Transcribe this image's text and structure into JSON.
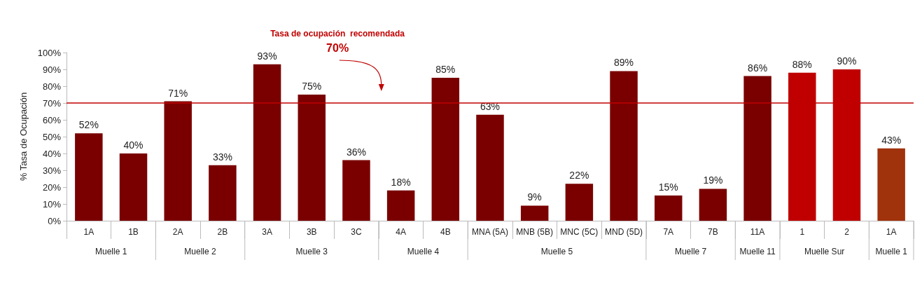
{
  "chart_data": {
    "type": "bar",
    "ylabel": "% Tasa de Ocupación",
    "categories": [
      "1A",
      "1B",
      "2A",
      "2B",
      "3A",
      "3B",
      "3C",
      "4A",
      "4B",
      "MNA (5A)",
      "MNB (5B)",
      "MNC (5C)",
      "MND (5D)",
      "7A",
      "7B",
      "11A",
      "1",
      "2",
      "1A"
    ],
    "values": [
      52,
      40,
      71,
      33,
      93,
      75,
      36,
      18,
      85,
      63,
      9,
      22,
      89,
      15,
      19,
      86,
      88,
      90,
      43
    ],
    "colors": [
      "#7a0000",
      "#7a0000",
      "#7a0000",
      "#7a0000",
      "#7a0000",
      "#7a0000",
      "#7a0000",
      "#7a0000",
      "#7a0000",
      "#7a0000",
      "#7a0000",
      "#7a0000",
      "#7a0000",
      "#7a0000",
      "#7a0000",
      "#7a0000",
      "#c00000",
      "#c00000",
      "#a0320c"
    ],
    "value_labels": [
      "52%",
      "40%",
      "71%",
      "33%",
      "93%",
      "75%",
      "36%",
      "18%",
      "85%",
      "63%",
      "9%",
      "22%",
      "89%",
      "15%",
      "19%",
      "86%",
      "88%",
      "90%",
      "43%"
    ],
    "ylim": [
      0,
      100
    ],
    "yticks": [
      {
        "value": 0,
        "label": "0%"
      },
      {
        "value": 10,
        "label": "10%"
      },
      {
        "value": 20,
        "label": "20%"
      },
      {
        "value": 30,
        "label": "30%"
      },
      {
        "value": 40,
        "label": "40%"
      },
      {
        "value": 50,
        "label": "50%"
      },
      {
        "value": 60,
        "label": "60%"
      },
      {
        "value": 70,
        "label": "70%"
      },
      {
        "value": 80,
        "label": "80%"
      },
      {
        "value": 90,
        "label": "90%"
      },
      {
        "value": 100,
        "label": "100%"
      }
    ],
    "ref_lines": [
      {
        "axis": "y",
        "value": 70,
        "label": "Tasa de ocupación  recomendada\n70%",
        "color": "#c00000"
      }
    ],
    "annotations": [
      "Muelle 1",
      "Muelle 2",
      "Muelle 3",
      "Muelle 4",
      "Muelle 5",
      "Muelle 7",
      "Muelle 11",
      "Muelle Sur",
      "Muelle 1"
    ],
    "grid": false
  }
}
